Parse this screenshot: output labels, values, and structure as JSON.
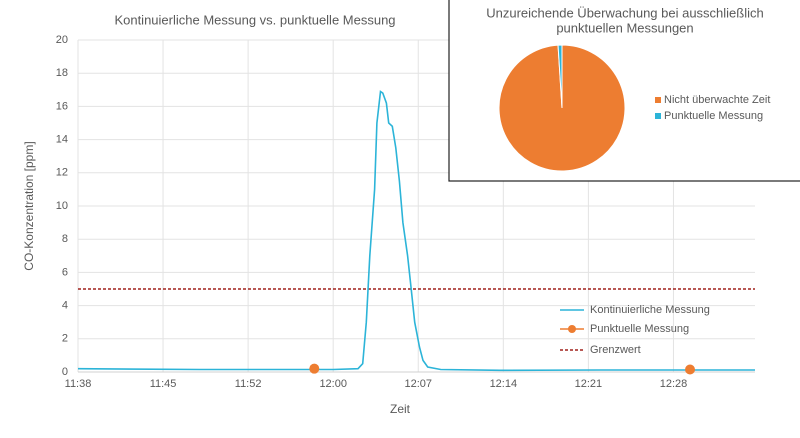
{
  "chart_data": [
    {
      "type": "line",
      "title": "Kontinuierliche Messung vs. punktuelle Messung",
      "x_label": "Zeit",
      "y_label": "CO-Konzentration [ppm]",
      "xlim": [
        698,
        755.3
      ],
      "xticks": [
        {
          "value": 698,
          "label": "11:38"
        },
        {
          "value": 705.2,
          "label": "11:45"
        },
        {
          "value": 712.4,
          "label": "11:52"
        },
        {
          "value": 719.6,
          "label": "12:00"
        },
        {
          "value": 726.8,
          "label": "12:07"
        },
        {
          "value": 734,
          "label": "12:14"
        },
        {
          "value": 741.2,
          "label": "12:21"
        },
        {
          "value": 748.4,
          "label": "12:28"
        }
      ],
      "ylim": [
        0,
        20
      ],
      "yticks": [
        0,
        2,
        4,
        6,
        8,
        10,
        12,
        14,
        16,
        18,
        20
      ],
      "grid": true,
      "series": [
        {
          "name": "Kontinuierliche Messung",
          "color": "#2cb4d8",
          "style": "line",
          "x": [
            698,
            708.3,
            719.6,
            721.7,
            722.1,
            722.4,
            722.7,
            723.1,
            723.3,
            723.6,
            723.8,
            724.1,
            724.3,
            724.6,
            724.9,
            725.2,
            725.5,
            725.9,
            726.2,
            726.5,
            726.9,
            727.2,
            727.6,
            728.7,
            733.7,
            742.2,
            750.7,
            755.3
          ],
          "values": [
            0.2,
            0.15,
            0.15,
            0.2,
            0.5,
            3,
            7,
            11,
            15,
            16.9,
            16.8,
            16.2,
            15,
            14.8,
            13.5,
            11.5,
            9,
            7,
            5,
            3,
            1.5,
            0.7,
            0.3,
            0.15,
            0.1,
            0.12,
            0.12,
            0.12
          ]
        },
        {
          "name": "Punktuelle Messung",
          "color": "#ed7d31",
          "style": "marker",
          "x": [
            718,
            749.8
          ],
          "values": [
            0.2,
            0.15
          ]
        }
      ],
      "threshold": {
        "name": "Grenzwert",
        "value": 5,
        "color": "#a0201c"
      }
    },
    {
      "type": "pie",
      "title": [
        "Unzureichende Überwachung bei ausschließlich",
        "punktuellen Messungen"
      ],
      "categories": [
        "Nicht überwachte Zeit",
        "Punktuelle Messung"
      ],
      "values": [
        99,
        1
      ],
      "colors": [
        "#ed7d31",
        "#2cb4d8"
      ]
    }
  ]
}
